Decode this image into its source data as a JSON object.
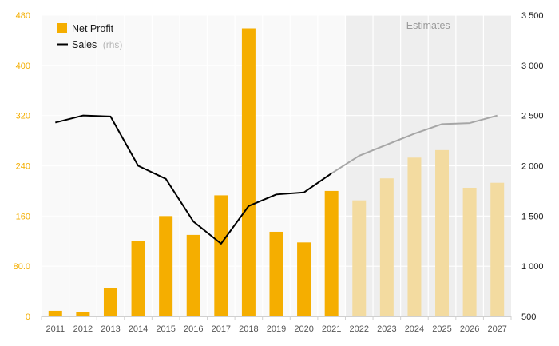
{
  "chart_data": {
    "type": "bar",
    "categories": [
      "2011",
      "2012",
      "2013",
      "2014",
      "2015",
      "2016",
      "2017",
      "2018",
      "2019",
      "2020",
      "2021",
      "2022",
      "2023",
      "2024",
      "2025",
      "2026",
      "2027"
    ],
    "estimates_from": "2022",
    "estimates_label": "Estimates",
    "series": [
      {
        "name": "Net Profit",
        "type": "bar",
        "axis": "left",
        "color": "#f5ae00",
        "estimate_color": "#f3dba0",
        "values": [
          9,
          7,
          45,
          120,
          160,
          130,
          193,
          459,
          135,
          118,
          200,
          185,
          220,
          253,
          265,
          205,
          213
        ]
      },
      {
        "name": "Sales",
        "name_suffix": "(rhs)",
        "type": "line",
        "axis": "right",
        "color": "#000000",
        "estimate_color": "#a6a6a6",
        "values": [
          2430,
          2500,
          2490,
          2000,
          1870,
          1445,
          1225,
          1600,
          1715,
          1735,
          1925,
          2100,
          2210,
          2320,
          2415,
          2425,
          2500
        ]
      }
    ],
    "y_left": {
      "min": 0,
      "max": 480,
      "ticks": [
        0,
        80,
        160,
        240,
        320,
        400,
        480
      ],
      "tick_labels": [
        "0",
        "80.0",
        "160",
        "240",
        "320",
        "400",
        "480"
      ],
      "color": "#f4ae00"
    },
    "y_right": {
      "min": 500,
      "max": 3500,
      "ticks": [
        500,
        1000,
        1500,
        2000,
        2500,
        3000,
        3500
      ],
      "tick_labels": [
        "500",
        "1 000",
        "1 500",
        "2 000",
        "2 500",
        "3 000",
        "3 500"
      ]
    },
    "grid": true,
    "legend": "top-left",
    "colors": {
      "plot_background": "#f9f9f9",
      "estimates_background": "#eeeeee",
      "grid": "#ffffff"
    }
  }
}
